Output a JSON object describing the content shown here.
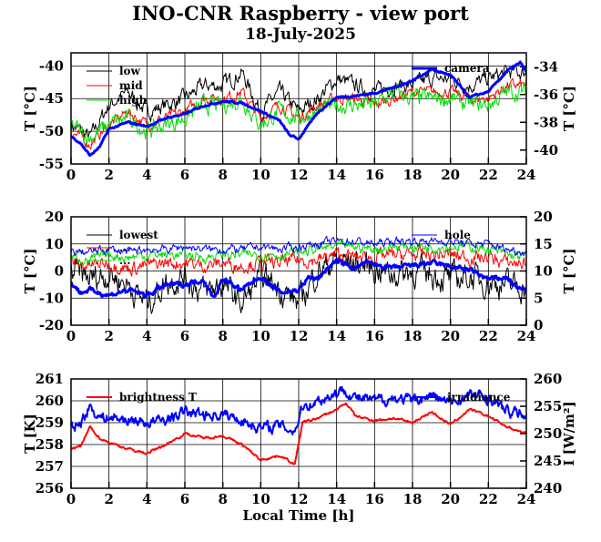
{
  "title": "INO-CNR Raspberry - view port",
  "subtitle": "18-July-2025",
  "xlabel": "Local Time [h]",
  "colors": {
    "black": "#000000",
    "red": "#ff0000",
    "green": "#00dd00",
    "blue": "#0000ff"
  },
  "chart_data": [
    {
      "type": "line",
      "xlim": [
        0,
        24
      ],
      "xticks": [
        "0",
        "2",
        "4",
        "6",
        "8",
        "10",
        "12",
        "14",
        "16",
        "18",
        "20",
        "22",
        "24"
      ],
      "ylabel": "T [°C]",
      "ylim": [
        -55,
        -38
      ],
      "yticks": [
        "-55",
        "-50",
        "-45",
        "-40"
      ],
      "y2label": "T [°C]",
      "y2lim": [
        -41,
        -33
      ],
      "y2ticks": [
        "-40",
        "-38",
        "-36",
        "-34"
      ],
      "grid": true,
      "legend": [
        "low",
        "mid",
        "high",
        "camera"
      ],
      "series": [
        {
          "name": "low",
          "color": "#000000",
          "axis": "left",
          "x": [
            0,
            1,
            2,
            3,
            4,
            5,
            6,
            7,
            8,
            9,
            10,
            11,
            12,
            13,
            14,
            15,
            16,
            17,
            18,
            19,
            20,
            21,
            22,
            23,
            24
          ],
          "y": [
            -49,
            -51,
            -46,
            -44,
            -47,
            -46,
            -45,
            -43,
            -43,
            -41,
            -47,
            -44,
            -47,
            -45,
            -42,
            -43,
            -44,
            -43,
            -43,
            -42,
            -42,
            -43,
            -42,
            -41,
            -41
          ]
        },
        {
          "name": "mid",
          "color": "#ff0000",
          "axis": "left",
          "x": [
            0,
            1,
            2,
            3,
            4,
            5,
            6,
            7,
            8,
            9,
            10,
            11,
            12,
            13,
            14,
            15,
            16,
            17,
            18,
            19,
            20,
            21,
            22,
            23,
            24
          ],
          "y": [
            -50,
            -52,
            -49,
            -47,
            -49,
            -48,
            -47,
            -45,
            -45,
            -44,
            -48,
            -46,
            -48,
            -46,
            -45,
            -45,
            -46,
            -45,
            -44,
            -44,
            -44,
            -45,
            -45,
            -43,
            -43
          ]
        },
        {
          "name": "high",
          "color": "#00dd00",
          "axis": "left",
          "x": [
            0,
            1,
            2,
            3,
            4,
            5,
            6,
            7,
            8,
            9,
            10,
            11,
            12,
            13,
            14,
            15,
            16,
            17,
            18,
            19,
            20,
            21,
            22,
            23,
            24
          ],
          "y": [
            -49,
            -51,
            -49,
            -48,
            -50,
            -49,
            -48,
            -46,
            -46,
            -45,
            -49,
            -47,
            -48,
            -47,
            -46,
            -46,
            -46,
            -44,
            -45,
            -45,
            -45,
            -46,
            -46,
            -44,
            -44
          ]
        },
        {
          "name": "camera",
          "color": "#0000ff",
          "axis": "right",
          "x": [
            0,
            0.5,
            1,
            1.5,
            2,
            3,
            4,
            5,
            6,
            7,
            8,
            9,
            10,
            11,
            11.5,
            12,
            13,
            14,
            15,
            16,
            17,
            18,
            19,
            20,
            21,
            22,
            23,
            23.7,
            24
          ],
          "y": [
            -39,
            -39.5,
            -40.4,
            -39.8,
            -38.5,
            -38,
            -38.3,
            -37.7,
            -37.4,
            -36.8,
            -36.5,
            -36.6,
            -37.2,
            -37.9,
            -38.9,
            -39.2,
            -37.3,
            -36.2,
            -36.1,
            -35.9,
            -35.5,
            -35,
            -34.2,
            -34.6,
            -36.2,
            -35.8,
            -34.3,
            -33.7,
            -34.4
          ]
        }
      ]
    },
    {
      "type": "line",
      "xlim": [
        0,
        24
      ],
      "xticks": [
        "0",
        "2",
        "4",
        "6",
        "8",
        "10",
        "12",
        "14",
        "16",
        "18",
        "20",
        "22",
        "24"
      ],
      "ylabel": "T [°C]",
      "ylim": [
        -20,
        20
      ],
      "yticks": [
        "-20",
        "-10",
        "0",
        "10",
        "20"
      ],
      "y2label": "T [°C]",
      "y2lim": [
        0,
        20
      ],
      "y2ticks": [
        "0",
        "5",
        "10",
        "15",
        "20"
      ],
      "grid": true,
      "legend": [
        "lowest",
        "...",
        "...",
        "hole"
      ],
      "series": [
        {
          "name": "lowest",
          "color": "#000000",
          "axis": "left",
          "x": [
            0,
            1,
            2,
            3,
            4,
            5,
            6,
            7,
            8,
            9,
            10,
            11,
            12,
            13,
            14,
            15,
            16,
            17,
            18,
            19,
            20,
            21,
            22,
            23,
            24
          ],
          "y": [
            0,
            -3,
            -1,
            -5,
            -12,
            -4,
            -2,
            -8,
            -5,
            -12,
            -2,
            -6,
            -12,
            0,
            4,
            3,
            1,
            -1,
            0,
            -1,
            -3,
            -2,
            -4,
            -5,
            -6
          ]
        },
        {
          "name": "",
          "color": "#ff0000",
          "axis": "left",
          "x": [
            0,
            1,
            2,
            3,
            4,
            5,
            6,
            7,
            8,
            9,
            10,
            11,
            12,
            13,
            14,
            15,
            16,
            17,
            18,
            19,
            20,
            21,
            22,
            23,
            24
          ],
          "y": [
            3,
            2,
            3,
            1,
            2,
            3,
            3,
            2,
            3,
            2,
            3,
            3,
            4,
            4,
            6,
            5,
            5,
            6,
            6,
            6,
            6,
            5,
            5,
            3,
            3
          ]
        },
        {
          "name": "",
          "color": "#00dd00",
          "axis": "left",
          "x": [
            0,
            1,
            2,
            3,
            4,
            5,
            6,
            7,
            8,
            9,
            10,
            11,
            12,
            13,
            14,
            15,
            16,
            17,
            18,
            19,
            20,
            21,
            22,
            23,
            24
          ],
          "y": [
            5,
            4,
            6,
            5,
            6,
            6,
            6,
            5,
            6,
            6,
            6,
            6,
            7,
            8,
            9,
            9,
            8,
            9,
            9,
            9,
            9,
            9,
            8,
            6,
            5
          ]
        },
        {
          "name": "",
          "color": "#0000ff",
          "axis": "left",
          "x": [
            0,
            1,
            2,
            3,
            4,
            5,
            6,
            7,
            8,
            9,
            10,
            11,
            12,
            13,
            14,
            15,
            16,
            17,
            18,
            19,
            20,
            21,
            22,
            23,
            24
          ],
          "y": [
            7,
            7,
            8,
            7,
            8,
            8,
            9,
            8,
            8,
            8,
            9,
            8,
            9,
            10,
            11,
            11,
            10,
            11,
            11,
            11,
            11,
            10,
            10,
            8,
            7
          ]
        },
        {
          "name": "hole",
          "color": "#0000ff",
          "axis": "right",
          "x": [
            0,
            0.5,
            1,
            2,
            3,
            4,
            5,
            6,
            7,
            7.5,
            8,
            9,
            10,
            11,
            12,
            12.5,
            13,
            13.5,
            14,
            15,
            15.5,
            16,
            17,
            18,
            19,
            20,
            21,
            22,
            23,
            23.5,
            24
          ],
          "y": [
            8,
            6,
            6.5,
            5.5,
            6.5,
            5.5,
            7.5,
            7.5,
            8.5,
            5,
            8.5,
            6.5,
            9,
            6,
            6.5,
            8.8,
            8.5,
            10.5,
            11.8,
            10.5,
            11.5,
            11.2,
            10.5,
            11,
            11.5,
            10.8,
            10.2,
            8.5,
            8.8,
            6.8,
            6.5
          ]
        }
      ]
    },
    {
      "type": "line",
      "xlim": [
        0,
        24
      ],
      "xticks": [
        "0",
        "2",
        "4",
        "6",
        "8",
        "10",
        "12",
        "14",
        "16",
        "18",
        "20",
        "22",
        "24"
      ],
      "xlabel": "Local Time [h]",
      "ylabel": "T [K]",
      "ylim": [
        256,
        261
      ],
      "yticks": [
        "256",
        "257",
        "258",
        "259",
        "260",
        "261"
      ],
      "y2label": "I [W/m²]",
      "y2lim": [
        240,
        260
      ],
      "y2ticks": [
        "240",
        "245",
        "250",
        "255",
        "260"
      ],
      "grid": true,
      "legend": [
        "brightness T",
        "irradiance"
      ],
      "series": [
        {
          "name": "brightness T",
          "color": "#ff0000",
          "axis": "left",
          "x": [
            0,
            0.5,
            1,
            1.5,
            2,
            3,
            4,
            5,
            6,
            7,
            8,
            9,
            10,
            11,
            11.8,
            12.2,
            13,
            14,
            14.5,
            15,
            16,
            17,
            18,
            19,
            20,
            21,
            22,
            23,
            24
          ],
          "y": [
            257.8,
            257.9,
            258.8,
            258.3,
            258.1,
            257.8,
            257.6,
            258.0,
            258.5,
            258.3,
            258.4,
            258.0,
            257.3,
            257.5,
            257.1,
            259.0,
            259.2,
            259.6,
            259.9,
            259.3,
            259.1,
            259.2,
            259.0,
            259.5,
            258.9,
            259.6,
            259.3,
            258.8,
            258.5
          ]
        },
        {
          "name": "irradiance",
          "color": "#0000ff",
          "axis": "right",
          "x": [
            0,
            0.5,
            1,
            1.5,
            2,
            3,
            4,
            5,
            6,
            7,
            8,
            9,
            10,
            11,
            11.8,
            12.2,
            13,
            14,
            14.5,
            15,
            16,
            17,
            18,
            19,
            20,
            21,
            22,
            23,
            24
          ],
          "y": [
            251,
            252,
            255,
            253,
            253,
            252.5,
            252,
            252.5,
            254,
            253.5,
            253.5,
            252.5,
            251,
            251.5,
            250.5,
            255,
            256,
            257.5,
            258,
            256.5,
            256,
            256.5,
            256,
            257,
            255.5,
            257,
            256.5,
            254,
            253.5
          ]
        }
      ]
    }
  ]
}
